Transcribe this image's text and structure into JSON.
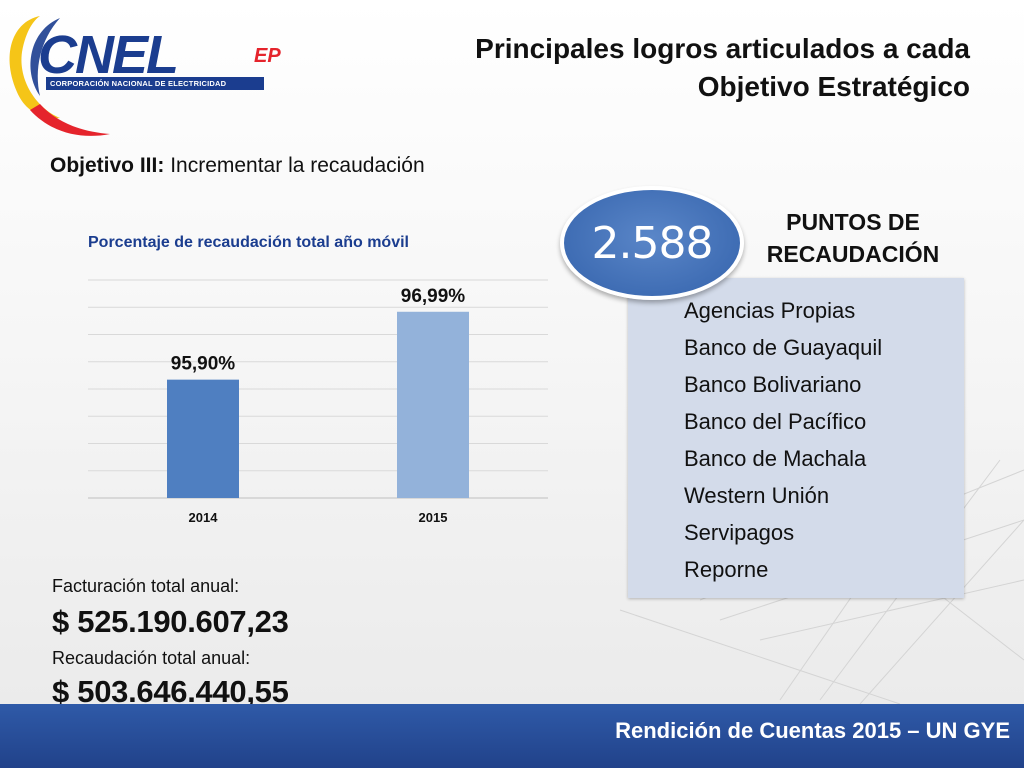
{
  "logo": {
    "wordmark": "CNEL",
    "suffix": "EP",
    "tagline": "CORPORACIÓN NACIONAL DE ELECTRICIDAD"
  },
  "header": {
    "title_line1": "Principales logros articulados a cada",
    "title_line2": "Objetivo Estratégico"
  },
  "objective": {
    "label": "Objetivo III:",
    "text": "Incrementar la recaudación"
  },
  "chart_data": {
    "type": "bar",
    "title": "Porcentaje de recaudación total año móvil",
    "categories": [
      "2014",
      "2015"
    ],
    "values": [
      95.9,
      96.99
    ],
    "value_labels": [
      "95,90%",
      "96,99%"
    ],
    "bar_colors": [
      "#4f7fc1",
      "#93b2da"
    ],
    "ylim": [
      94.0,
      97.5
    ],
    "grid": true,
    "xlabel": "",
    "ylabel": ""
  },
  "metrics": {
    "billing_label": "Facturación total anual:",
    "billing_value": "$ 525.190.607,23",
    "collection_label": "Recaudación total anual:",
    "collection_value": "$ 503.646.440,55"
  },
  "points": {
    "count": "2.588",
    "heading_line1": "PUNTOS DE",
    "heading_line2": "RECAUDACIÓN",
    "items": [
      "Agencias Propias",
      "Banco de Guayaquil",
      "Banco Bolivariano",
      "Banco del Pacífico",
      "Banco de Machala",
      "Western Unión",
      "Servipagos",
      "Reporne"
    ]
  },
  "footer": {
    "text": "Rendición de Cuentas 2015 – UN GYE"
  },
  "colors": {
    "brand_blue": "#1b3d8f",
    "brand_red": "#e5242c",
    "brand_yellow": "#f5c518",
    "footer_blue": "#2f5aa8",
    "panel_bg": "#d3dbea"
  }
}
